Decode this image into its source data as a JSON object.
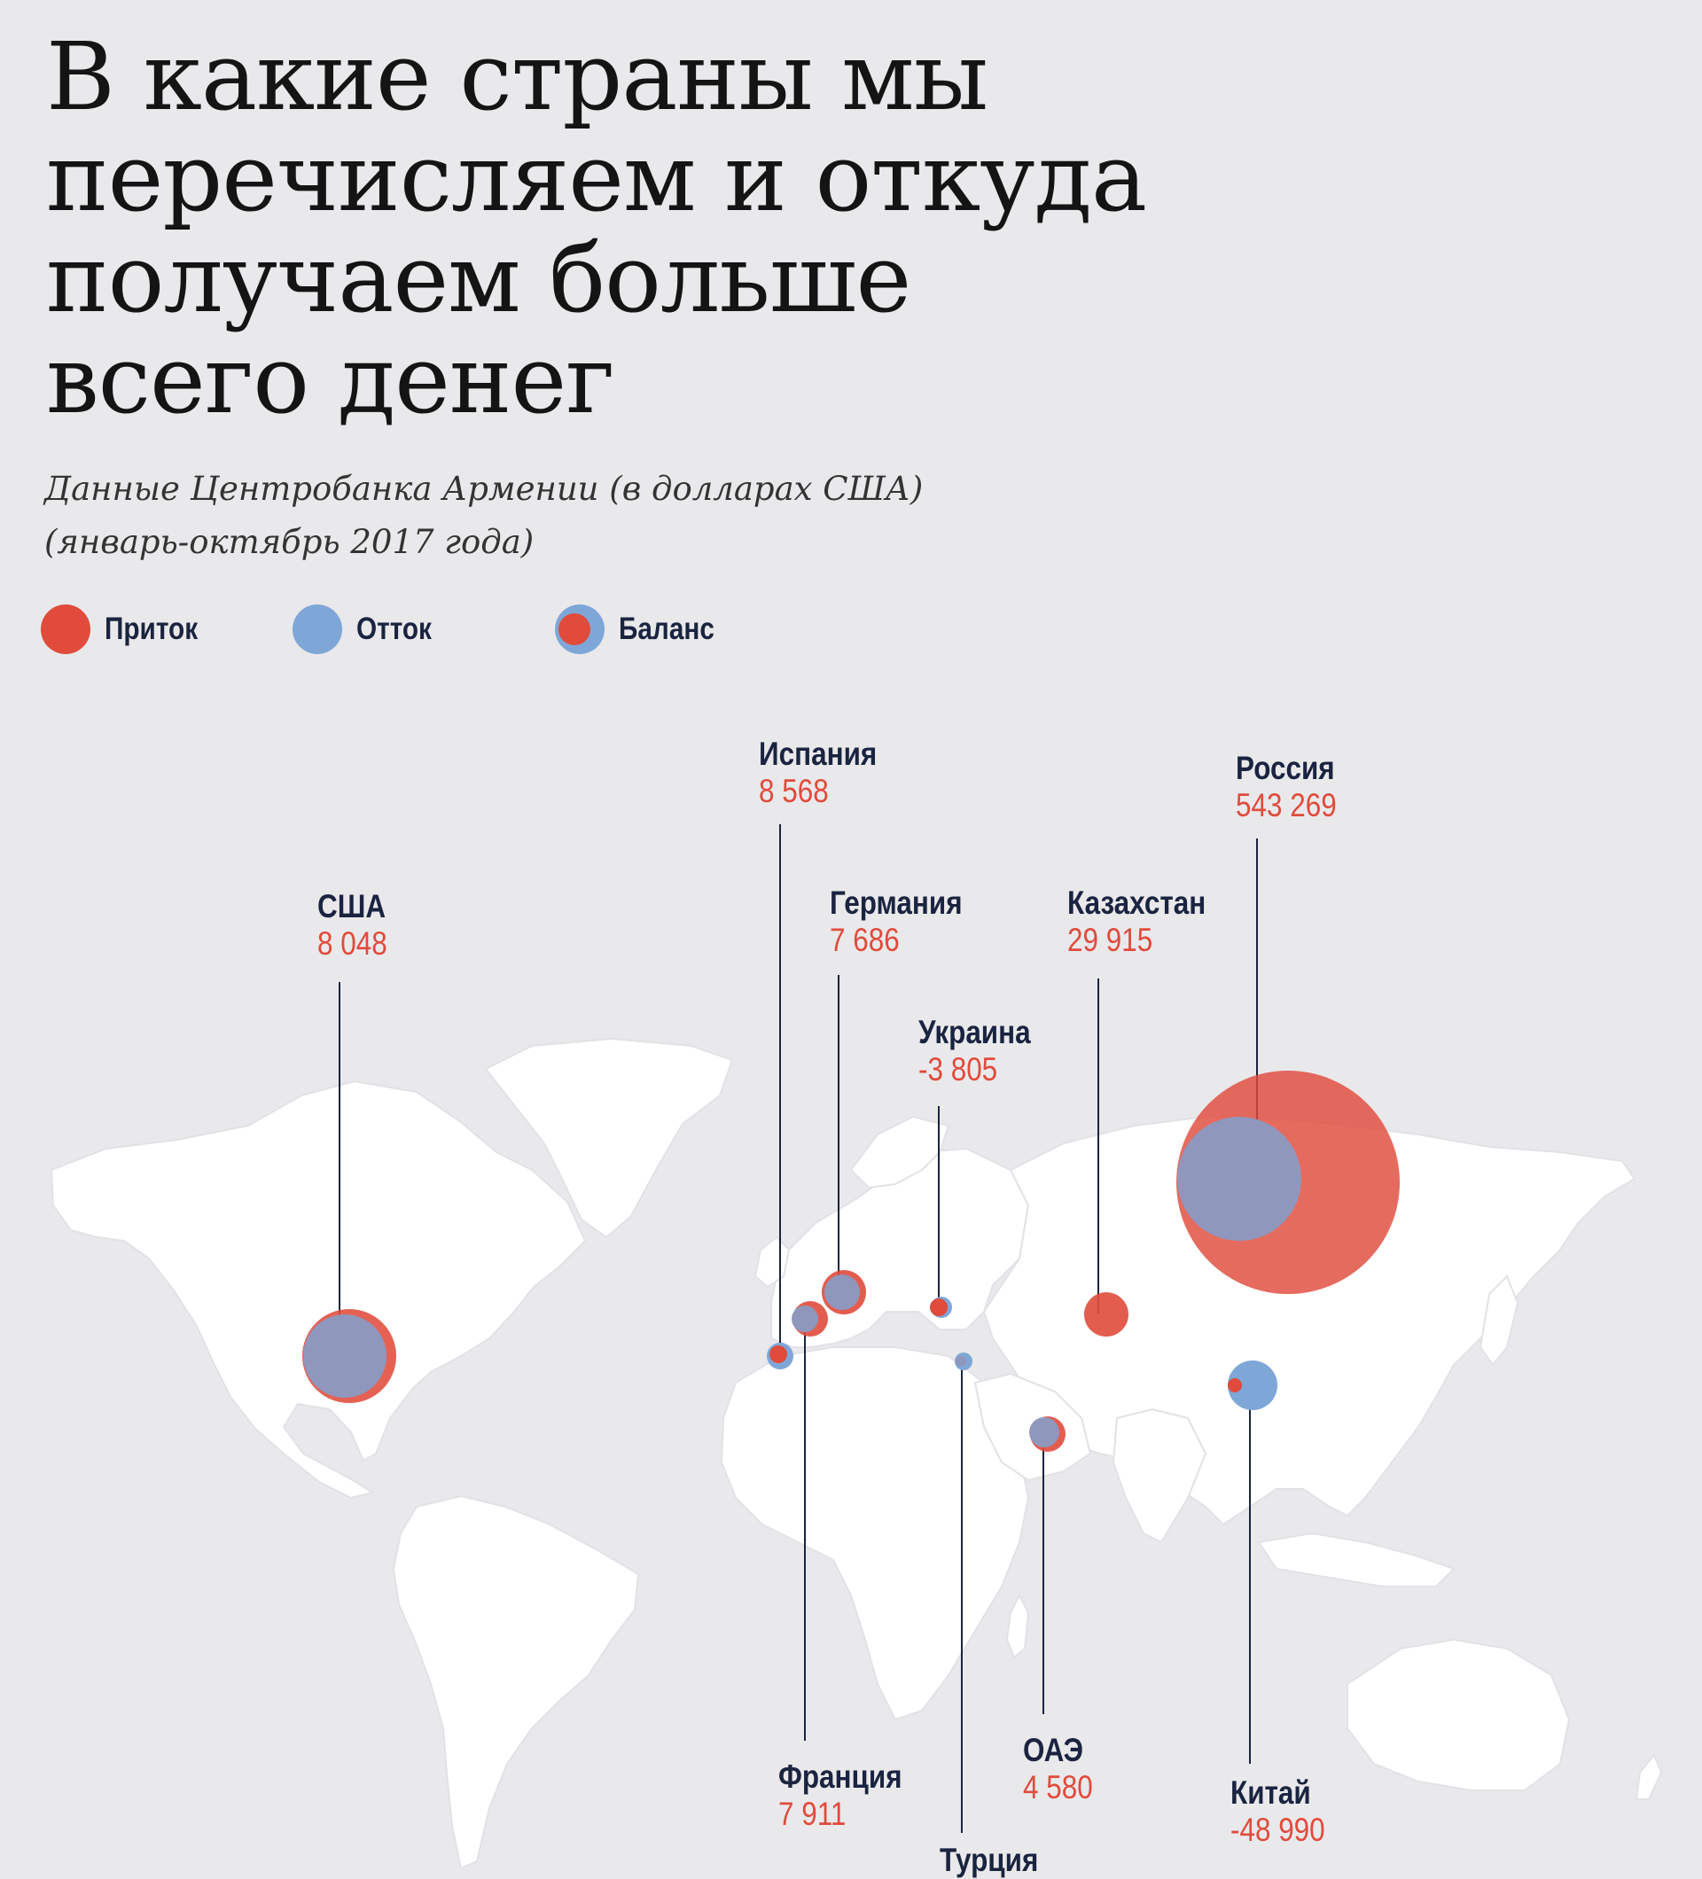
{
  "title_lines": [
    "В какие страны мы",
    "перечисляем и откуда",
    "получаем больше",
    "всего денег"
  ],
  "subtitle_lines": [
    "Данные Центробанка Армении (в долларах США)",
    "(январь-октябрь 2017 года)"
  ],
  "colors": {
    "inflow": "#e04b3c",
    "outflow": "#7ea7d8",
    "overlap": "#8f97bd",
    "text": "#1a2440",
    "land": "#ffffff",
    "background": "#e9e9eb"
  },
  "legend": [
    {
      "label": "Приток",
      "kind": "inflow"
    },
    {
      "label": "Отток",
      "kind": "outflow"
    },
    {
      "label": "Баланс",
      "kind": "balance"
    }
  ],
  "countries": [
    {
      "name": "США",
      "value": "8 048",
      "balance": 8048
    },
    {
      "name": "Испания",
      "value": "8 568",
      "balance": 8568
    },
    {
      "name": "Германия",
      "value": "7 686",
      "balance": 7686
    },
    {
      "name": "Украина",
      "value": "-3 805",
      "balance": -3805
    },
    {
      "name": "Казахстан",
      "value": "29 915",
      "balance": 29915
    },
    {
      "name": "Россия",
      "value": "543 269",
      "balance": 543269
    },
    {
      "name": "Франция",
      "value": "7 911",
      "balance": 7911
    },
    {
      "name": "Турция",
      "value": "",
      "balance": null
    },
    {
      "name": "ОАЭ",
      "value": "4 580",
      "balance": 4580
    },
    {
      "name": "Китай",
      "value": "-48 990",
      "balance": -48990
    }
  ]
}
